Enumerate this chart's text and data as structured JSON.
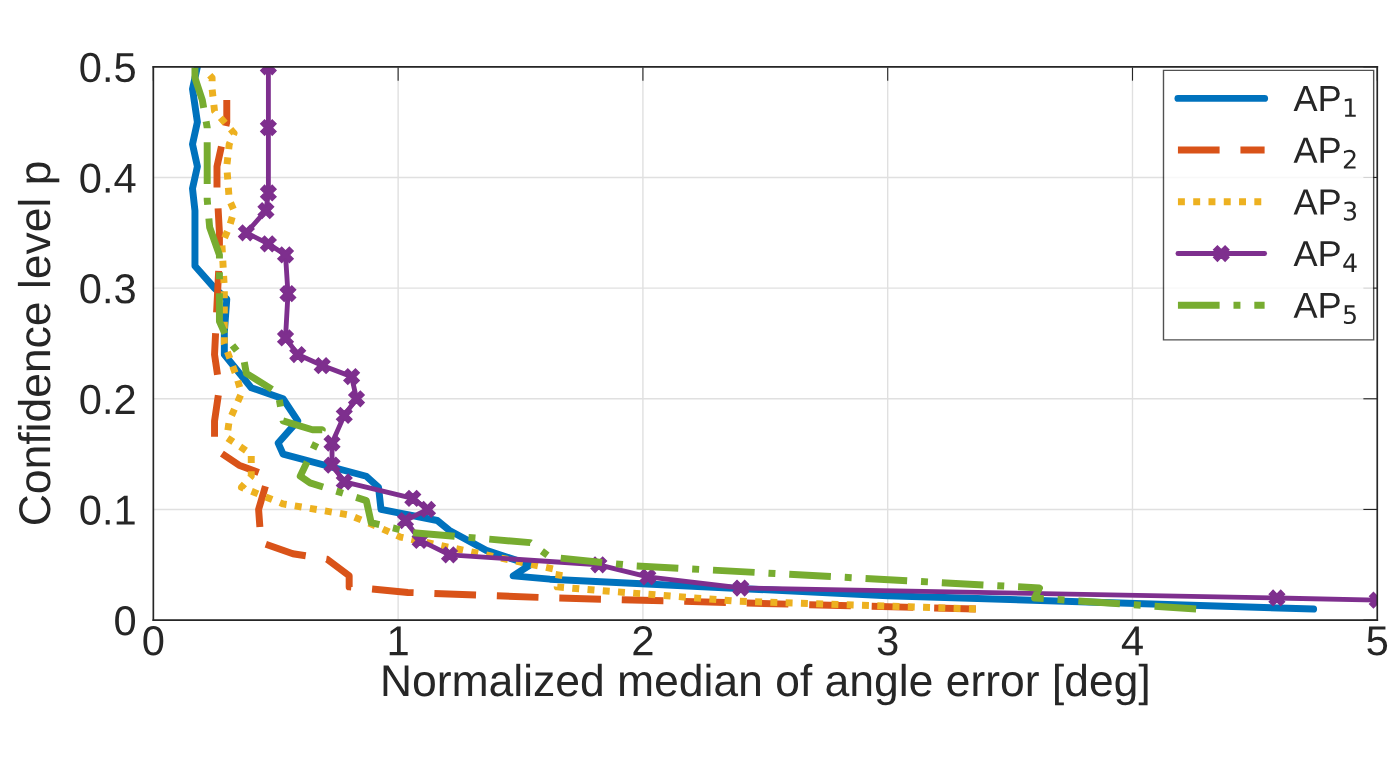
{
  "chart_data": {
    "type": "line",
    "xlabel": "Normalized median of angle error [deg]",
    "ylabel": "Confidence level p",
    "xlim": [
      0,
      5
    ],
    "ylim": [
      0,
      0.5
    ],
    "xticks": [
      0,
      1,
      2,
      3,
      4,
      5
    ],
    "yticks": [
      0,
      0.1,
      0.2,
      0.3,
      0.4,
      0.5
    ],
    "grid": true,
    "legend": "top right",
    "series": [
      {
        "name": "AP$_{1}$",
        "color": "#0072bd",
        "line_style": "solid",
        "marker": "none",
        "x": [
          4.74,
          3.0,
          1.62,
          1.47,
          1.54,
          1.36,
          1.21,
          1.16,
          0.93,
          0.92,
          0.87,
          0.53,
          0.51,
          0.59,
          0.53,
          0.4,
          0.29,
          0.29,
          0.3,
          0.25,
          0.17,
          0.17,
          0.16,
          0.18,
          0.16,
          0.18,
          0.16,
          0.18
        ],
        "values": [
          0.01,
          0.022,
          0.037,
          0.04,
          0.05,
          0.063,
          0.081,
          0.09,
          0.1,
          0.12,
          0.13,
          0.15,
          0.16,
          0.18,
          0.2,
          0.21,
          0.24,
          0.26,
          0.29,
          0.3,
          0.32,
          0.37,
          0.39,
          0.41,
          0.43,
          0.45,
          0.48,
          0.5
        ]
      },
      {
        "name": "AP$_{2}$",
        "color": "#d95319",
        "line_style": "dashed",
        "marker": "none",
        "x": [
          3.36,
          1.64,
          1.04,
          0.8,
          0.8,
          0.71,
          0.57,
          0.44,
          0.43,
          0.47,
          0.35,
          0.25,
          0.25,
          0.27,
          0.25,
          0.27,
          0.27,
          0.26,
          0.26,
          0.3,
          0.3
        ],
        "values": [
          0.01,
          0.02,
          0.025,
          0.03,
          0.04,
          0.055,
          0.06,
          0.07,
          0.1,
          0.13,
          0.14,
          0.155,
          0.18,
          0.21,
          0.24,
          0.33,
          0.35,
          0.39,
          0.41,
          0.45,
          0.47
        ]
      },
      {
        "name": "AP$_{3}$",
        "color": "#edb120",
        "line_style": "dotted",
        "marker": "none",
        "x": [
          3.36,
          2.39,
          1.81,
          1.65,
          1.66,
          1.01,
          0.91,
          0.8,
          0.53,
          0.36,
          0.4,
          0.4,
          0.3,
          0.31,
          0.36,
          0.34,
          0.29,
          0.29,
          0.28,
          0.31,
          0.33,
          0.31,
          0.3,
          0.31,
          0.33,
          0.25,
          0.24,
          0.24,
          0.22
        ],
        "values": [
          0.01,
          0.017,
          0.027,
          0.03,
          0.045,
          0.075,
          0.085,
          0.095,
          0.105,
          0.12,
          0.13,
          0.15,
          0.165,
          0.18,
          0.205,
          0.22,
          0.25,
          0.3,
          0.34,
          0.355,
          0.37,
          0.38,
          0.41,
          0.43,
          0.44,
          0.46,
          0.48,
          0.49,
          0.495
        ]
      },
      {
        "name": "AP$_{4}$",
        "color": "#7e2f8e",
        "line_style": "solid",
        "marker": "cross",
        "x": [
          5.0,
          4.59,
          2.4,
          2.02,
          1.82,
          1.21,
          1.09,
          1.03,
          1.12,
          1.06,
          0.78,
          0.73,
          0.73,
          0.78,
          0.83,
          0.81,
          0.69,
          0.59,
          0.54,
          0.55,
          0.54,
          0.47,
          0.38,
          0.46,
          0.47,
          0.47,
          0.47
        ],
        "values": [
          0.018,
          0.02,
          0.029,
          0.039,
          0.05,
          0.059,
          0.072,
          0.09,
          0.1,
          0.11,
          0.125,
          0.14,
          0.16,
          0.185,
          0.2,
          0.22,
          0.23,
          0.24,
          0.255,
          0.295,
          0.33,
          0.34,
          0.35,
          0.37,
          0.386,
          0.445,
          0.5
        ]
      },
      {
        "name": "AP$_{5}$",
        "color": "#77ac30",
        "line_style": "dashdot",
        "marker": "none",
        "x": [
          4.26,
          3.6,
          3.62,
          1.97,
          1.62,
          1.54,
          1.06,
          0.89,
          0.87,
          0.64,
          0.6,
          0.69,
          0.65,
          0.53,
          0.51,
          0.38,
          0.37,
          0.3,
          0.27,
          0.27,
          0.27,
          0.23,
          0.22,
          0.22,
          0.22,
          0.22,
          0.2,
          0.17,
          0.17
        ],
        "values": [
          0.01,
          0.02,
          0.029,
          0.049,
          0.057,
          0.07,
          0.079,
          0.088,
          0.108,
          0.124,
          0.13,
          0.172,
          0.172,
          0.18,
          0.205,
          0.223,
          0.235,
          0.255,
          0.27,
          0.295,
          0.33,
          0.355,
          0.38,
          0.41,
          0.43,
          0.445,
          0.47,
          0.49,
          0.5
        ]
      }
    ]
  }
}
